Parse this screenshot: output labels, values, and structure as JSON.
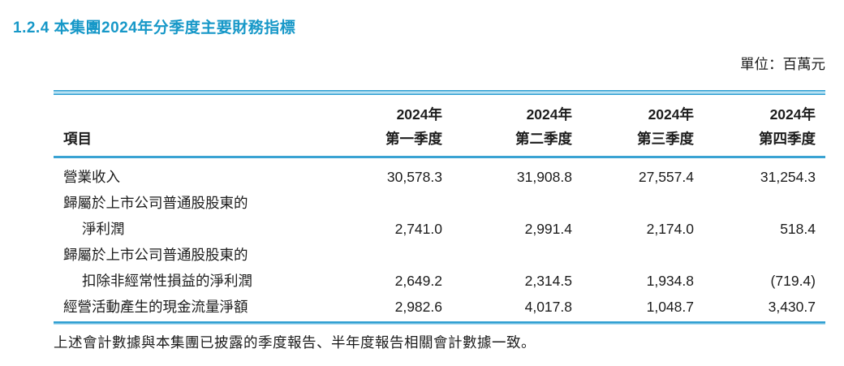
{
  "page": {
    "title": "1.2.4 本集團2024年分季度主要財務指標",
    "unit_label": "單位：百萬元",
    "footnote": "上述會計數據與本集團已披露的季度報告、半年度報告相關會計數據一致。"
  },
  "colors": {
    "title_blue": "#1798c8",
    "rule_blue": "#2f9fd2",
    "rule_light_blue": "#b9e1f2",
    "text": "#1c1c1c"
  },
  "chart_data": {
    "type": "table",
    "title": "本集團2024年分季度主要財務指標",
    "unit": "百萬元",
    "item_header": "項目",
    "column_headers": [
      {
        "line1": "2024年",
        "line2": "第一季度"
      },
      {
        "line1": "2024年",
        "line2": "第二季度"
      },
      {
        "line1": "2024年",
        "line2": "第三季度"
      },
      {
        "line1": "2024年",
        "line2": "第四季度"
      }
    ],
    "rows": [
      {
        "label_line1": "營業收入",
        "label_line2": "",
        "v1": "30,578.3",
        "v2": "31,908.8",
        "v3": "27,557.4",
        "v4": "31,254.3"
      },
      {
        "label_line1": "歸屬於上市公司普通股股東的",
        "label_line2": "淨利潤",
        "v1": "2,741.0",
        "v2": "2,991.4",
        "v3": "2,174.0",
        "v4": "518.4"
      },
      {
        "label_line1": "歸屬於上市公司普通股股東的",
        "label_line2": "扣除非經常性損益的淨利潤",
        "v1": "2,649.2",
        "v2": "2,314.5",
        "v3": "1,934.8",
        "v4": "(719.4)"
      },
      {
        "label_line1": "經營活動產生的現金流量淨額",
        "label_line2": "",
        "v1": "2,982.6",
        "v2": "4,017.8",
        "v3": "1,048.7",
        "v4": "3,430.7"
      }
    ]
  }
}
